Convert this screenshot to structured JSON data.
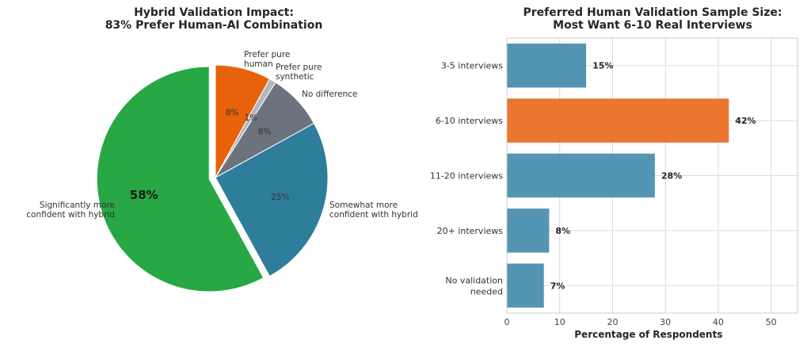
{
  "chart_data": [
    {
      "type": "pie",
      "title_lines": [
        "Hybrid Validation Impact:",
        "83% Prefer Human-AI Combination"
      ],
      "start_angle_deg": 90,
      "direction": "clockwise",
      "slices": [
        {
          "label_lines": [
            "Prefer pure",
            "human"
          ],
          "value": 8,
          "pct_label": "8%",
          "color": "#e8620c",
          "exploded": false
        },
        {
          "label_lines": [
            "Prefer pure",
            "synthetic"
          ],
          "value": 1,
          "pct_label": "1%",
          "color": "#b4b8bd",
          "exploded": false
        },
        {
          "label_lines": [
            "No difference"
          ],
          "value": 8,
          "pct_label": "8%",
          "color": "#6c737d",
          "exploded": false
        },
        {
          "label_lines": [
            "Somewhat more",
            "confident with hybrid"
          ],
          "value": 25,
          "pct_label": "25%",
          "color": "#2e7d9b",
          "exploded": false
        },
        {
          "label_lines": [
            "Significantly more",
            "confident with hybrid"
          ],
          "value": 58,
          "pct_label": "58%",
          "color": "#28a745",
          "exploded": true,
          "pct_bold": true
        }
      ]
    },
    {
      "type": "bar",
      "orientation": "horizontal",
      "title_lines": [
        "Preferred Human Validation Sample Size:",
        "Most Want 6-10 Real Interviews"
      ],
      "categories": [
        [
          "3-5 interviews"
        ],
        [
          "6-10 interviews"
        ],
        [
          "11-20 interviews"
        ],
        [
          "20+ interviews"
        ],
        [
          "No validation",
          "needed"
        ]
      ],
      "values": [
        15,
        42,
        28,
        8,
        7
      ],
      "value_labels": [
        "15%",
        "42%",
        "28%",
        "8%",
        "7%"
      ],
      "colors": [
        "#4a8fae",
        "#eb6e24",
        "#4a8fae",
        "#4a8fae",
        "#4a8fae"
      ],
      "xlabel": "Percentage of Respondents",
      "ylabel": "",
      "xlim": [
        0,
        55
      ],
      "xticks": [
        0,
        10,
        20,
        30,
        40,
        50
      ],
      "grid": true,
      "legend": "none"
    }
  ]
}
